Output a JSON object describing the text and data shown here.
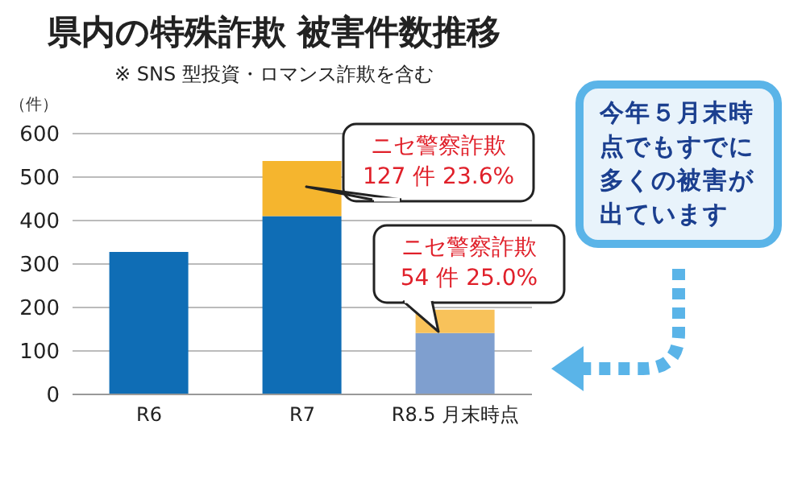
{
  "chart_data": {
    "type": "bar",
    "title": "県内の特殊詐欺 被害件数推移",
    "subtitle": "※ SNS 型投資・ロマンス詐欺を含む",
    "ylabel": "（件）",
    "categories": [
      "R6",
      "R7",
      "R8.5 月末時点"
    ],
    "stacked": true,
    "series": [
      {
        "values": [
          328,
          410,
          141
        ],
        "colors": [
          "#0f6db5",
          "#0f6db5",
          "#7f9fcf"
        ]
      },
      {
        "values": [
          null,
          127,
          54
        ],
        "colors": [
          "#f5b52e",
          "#f5b52e",
          "#f8c25a"
        ]
      }
    ],
    "ylim": [
      0,
      600
    ],
    "yticks": [
      0,
      100,
      200,
      300,
      400,
      500,
      600
    ],
    "grid": "y",
    "annotations": [
      "ニセ警察詐欺\n127 件 23.6%",
      "ニセ警察詐欺\n54 件 25.0%",
      "今年５月末時点でもすでに多くの被害が出ています"
    ]
  }
}
